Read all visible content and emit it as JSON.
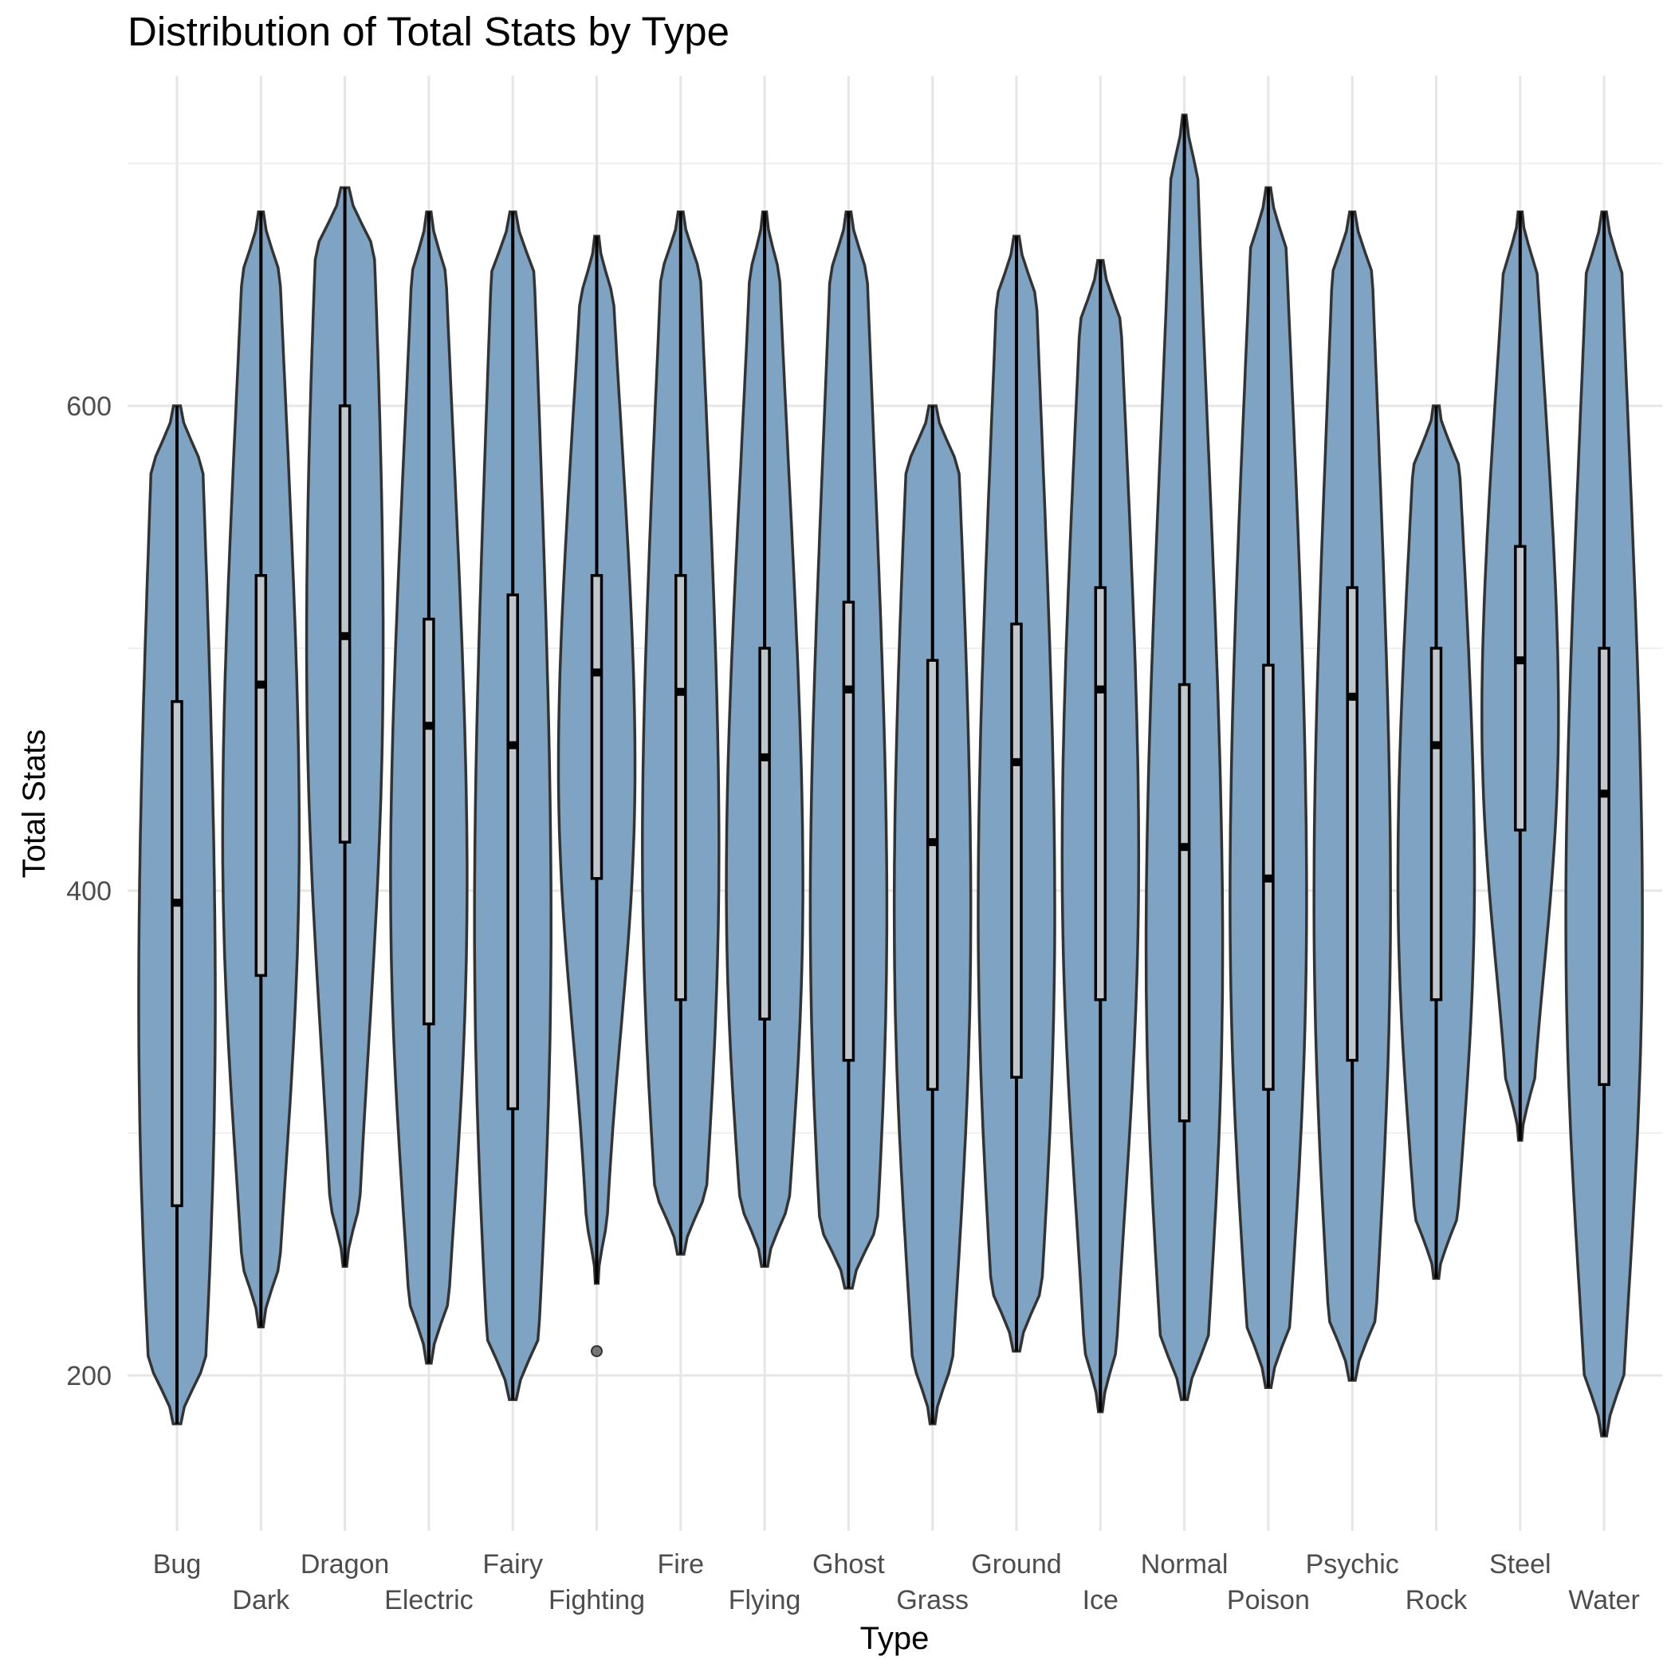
{
  "chart_data": {
    "type": "violin",
    "title": "Distribution of Total Stats by Type",
    "xlabel": "Type",
    "ylabel": "Total Stats",
    "ylim": [
      160,
      780
    ],
    "yticks": [
      200,
      400,
      600
    ],
    "grid": true,
    "fill_color": "#7fa3c2",
    "outline_color": "#333333",
    "box_fill": "#bfc6cc",
    "categories": [
      "Bug",
      "Dark",
      "Dragon",
      "Electric",
      "Fairy",
      "Fighting",
      "Fire",
      "Flying",
      "Ghost",
      "Grass",
      "Ground",
      "Ice",
      "Normal",
      "Poison",
      "Psychic",
      "Rock",
      "Steel",
      "Water"
    ],
    "series": [
      {
        "type": "Bug",
        "min": 180,
        "q1": 270,
        "median": 395,
        "q3": 478,
        "max": 600,
        "outliers": []
      },
      {
        "type": "Dark",
        "min": 220,
        "q1": 365,
        "median": 485,
        "q3": 530,
        "max": 680,
        "outliers": []
      },
      {
        "type": "Dragon",
        "min": 245,
        "q1": 420,
        "median": 505,
        "q3": 600,
        "max": 690,
        "outliers": []
      },
      {
        "type": "Electric",
        "min": 205,
        "q1": 345,
        "median": 468,
        "q3": 512,
        "max": 680,
        "outliers": []
      },
      {
        "type": "Fairy",
        "min": 190,
        "q1": 310,
        "median": 460,
        "q3": 522,
        "max": 680,
        "outliers": []
      },
      {
        "type": "Fighting",
        "min": 238,
        "q1": 405,
        "median": 490,
        "q3": 530,
        "max": 670,
        "outliers": [
          210
        ]
      },
      {
        "type": "Fire",
        "min": 250,
        "q1": 355,
        "median": 482,
        "q3": 530,
        "max": 680,
        "outliers": []
      },
      {
        "type": "Flying",
        "min": 245,
        "q1": 347,
        "median": 455,
        "q3": 500,
        "max": 680,
        "outliers": []
      },
      {
        "type": "Ghost",
        "min": 236,
        "q1": 330,
        "median": 483,
        "q3": 519,
        "max": 680,
        "outliers": []
      },
      {
        "type": "Grass",
        "min": 180,
        "q1": 318,
        "median": 420,
        "q3": 495,
        "max": 600,
        "outliers": []
      },
      {
        "type": "Ground",
        "min": 210,
        "q1": 323,
        "median": 453,
        "q3": 510,
        "max": 670,
        "outliers": []
      },
      {
        "type": "Ice",
        "min": 185,
        "q1": 355,
        "median": 483,
        "q3": 525,
        "max": 660,
        "outliers": []
      },
      {
        "type": "Normal",
        "min": 190,
        "q1": 305,
        "median": 418,
        "q3": 485,
        "max": 720,
        "outliers": []
      },
      {
        "type": "Poison",
        "min": 195,
        "q1": 318,
        "median": 405,
        "q3": 493,
        "max": 690,
        "outliers": []
      },
      {
        "type": "Psychic",
        "min": 198,
        "q1": 330,
        "median": 480,
        "q3": 525,
        "max": 680,
        "outliers": []
      },
      {
        "type": "Rock",
        "min": 240,
        "q1": 355,
        "median": 460,
        "q3": 500,
        "max": 600,
        "outliers": []
      },
      {
        "type": "Steel",
        "min": 297,
        "q1": 425,
        "median": 495,
        "q3": 542,
        "max": 680,
        "outliers": []
      },
      {
        "type": "Water",
        "min": 175,
        "q1": 320,
        "median": 440,
        "q3": 500,
        "max": 680,
        "outliers": []
      }
    ]
  }
}
